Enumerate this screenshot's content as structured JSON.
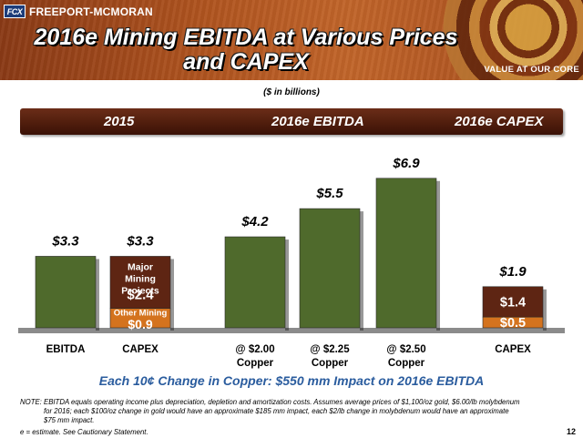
{
  "header": {
    "logo_mark": "FCX",
    "logo_text": "FREEPORT-MCMORAN",
    "title_line1": "2016e Mining EBITDA at Various Prices",
    "title_line2": "and CAPEX",
    "tagline": "VALUE AT OUR CORE"
  },
  "units_label": "($ in billions)",
  "band": {
    "label_2015": "2015",
    "label_ebitda": "2016e EBITDA",
    "label_capex": "2016e CAPEX"
  },
  "colors": {
    "green_bar": "#4f6a2c",
    "brown_segment": "#5e2513",
    "orange_segment": "#d4731e",
    "callout_blue": "#2a5c9e"
  },
  "chart_data": {
    "type": "bar",
    "ylim": [
      0,
      7
    ],
    "bars": [
      {
        "category": "EBITDA",
        "segments": [
          {
            "value": 3.3,
            "color": "green"
          }
        ],
        "total_label": "$3.3"
      },
      {
        "category": "CAPEX",
        "segments": [
          {
            "value": 0.9,
            "color": "orange",
            "label": "$0.9",
            "sublabel": "Other Mining"
          },
          {
            "value": 2.4,
            "color": "brown",
            "label": "$2.4",
            "sublabel": "Major Mining Projects"
          }
        ],
        "total_label": "$3.3"
      },
      {
        "category": "@ $2.00 Copper",
        "segments": [
          {
            "value": 4.2,
            "color": "green"
          }
        ],
        "total_label": "$4.2"
      },
      {
        "category": "@ $2.25 Copper",
        "segments": [
          {
            "value": 5.5,
            "color": "green"
          }
        ],
        "total_label": "$5.5"
      },
      {
        "category": "@ $2.50 Copper",
        "segments": [
          {
            "value": 6.9,
            "color": "green"
          }
        ],
        "total_label": "$6.9"
      },
      {
        "category": "CAPEX",
        "segments": [
          {
            "value": 0.5,
            "color": "orange",
            "label": "$0.5"
          },
          {
            "value": 1.4,
            "color": "brown",
            "label": "$1.4"
          }
        ],
        "total_label": "$1.9"
      }
    ]
  },
  "callout": "Each 10¢ Change in Copper: $550 mm Impact on 2016e EBITDA",
  "note_line1": "NOTE: EBITDA equals operating income plus depreciation, depletion and amortization costs. Assumes average prices of $1,100/oz gold, $6.00/lb molybdenum",
  "note_line2": "for 2016; each $100/oz change in gold would have an approximate $185 mm impact, each $2/lb change in molybdenum would have an approximate",
  "note_line3": "$75 mm impact.",
  "estimate_note": "e = estimate. See Cautionary Statement.",
  "page_number": "12"
}
